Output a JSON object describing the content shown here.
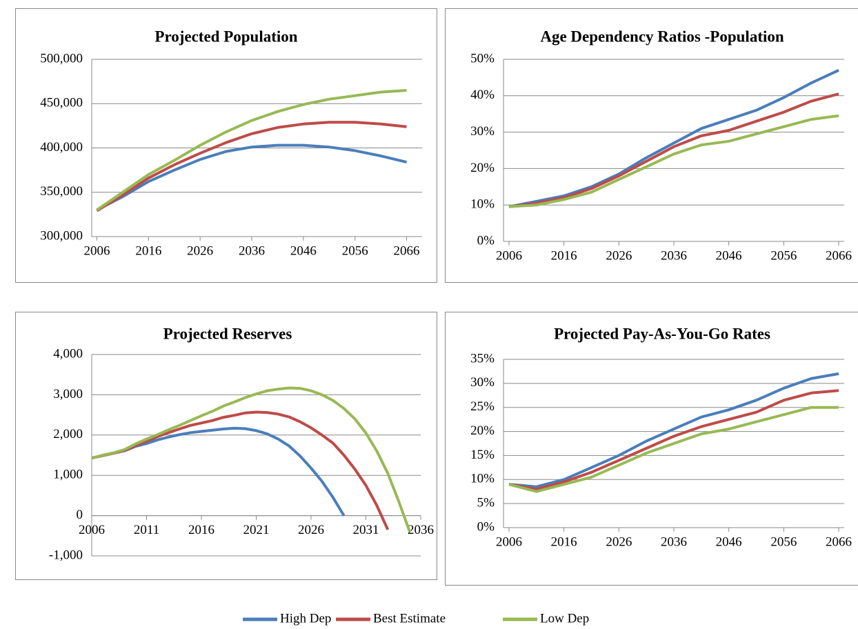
{
  "chart_data": [
    {
      "type": "line",
      "title": "Projected Population",
      "x": [
        2006,
        2011,
        2016,
        2021,
        2026,
        2031,
        2036,
        2041,
        2046,
        2051,
        2056,
        2061,
        2066
      ],
      "series": [
        {
          "name": "High Dep",
          "color": "#4a7ebb",
          "values": [
            330000,
            345000,
            362000,
            375000,
            387000,
            396000,
            401000,
            403000,
            403000,
            401000,
            397000,
            391000,
            384000
          ]
        },
        {
          "name": "Best Estimate",
          "color": "#be4b48",
          "values": [
            329000,
            347000,
            366000,
            381000,
            394000,
            406000,
            416000,
            423000,
            427000,
            429000,
            429000,
            427000,
            424000
          ]
        },
        {
          "name": "Low Dep",
          "color": "#98b954",
          "values": [
            330000,
            350000,
            370000,
            386000,
            403000,
            418000,
            431000,
            441000,
            449000,
            455000,
            459000,
            463000,
            465000
          ]
        }
      ],
      "xlim": [
        2005,
        2069
      ],
      "xticks": [
        2006,
        2016,
        2026,
        2036,
        2046,
        2056,
        2066
      ],
      "ylim": [
        300000,
        500000
      ],
      "yticks": [
        {
          "value": 300000,
          "label": "300,000"
        },
        {
          "value": 350000,
          "label": "350,000"
        },
        {
          "value": 400000,
          "label": "400,000"
        },
        {
          "value": 450000,
          "label": "450,000"
        },
        {
          "value": 500000,
          "label": "500,000"
        }
      ],
      "grid": true
    },
    {
      "type": "line",
      "title": "Age Dependency Ratios -Population",
      "x": [
        2006,
        2011,
        2016,
        2021,
        2026,
        2031,
        2036,
        2041,
        2046,
        2051,
        2056,
        2061,
        2066
      ],
      "series": [
        {
          "name": "High Dep",
          "color": "#4a7ebb",
          "values": [
            9.5,
            11,
            12.5,
            15,
            18.5,
            23,
            27,
            31,
            33.5,
            36,
            39.5,
            43.5,
            47
          ]
        },
        {
          "name": "Best Estimate",
          "color": "#be4b48",
          "values": [
            9.5,
            10.5,
            12,
            14.5,
            18,
            22,
            26,
            29,
            30.5,
            33,
            35.5,
            38.5,
            40.5
          ]
        },
        {
          "name": "Low Dep",
          "color": "#98b954",
          "values": [
            9.5,
            10,
            11.5,
            13.5,
            17,
            20.5,
            24,
            26.5,
            27.5,
            29.5,
            31.5,
            33.5,
            34.5
          ]
        }
      ],
      "xlim": [
        2005,
        2067
      ],
      "xticks": [
        2006,
        2016,
        2026,
        2036,
        2046,
        2056,
        2066
      ],
      "ylim": [
        0,
        50
      ],
      "yticks": [
        {
          "value": 0,
          "label": "0%"
        },
        {
          "value": 10,
          "label": "10%"
        },
        {
          "value": 20,
          "label": "20%"
        },
        {
          "value": 30,
          "label": "30%"
        },
        {
          "value": 40,
          "label": "40%"
        },
        {
          "value": 50,
          "label": "50%"
        }
      ],
      "grid": true
    },
    {
      "type": "line",
      "title": "Projected Reserves",
      "x": [
        2006,
        2007,
        2008,
        2009,
        2010,
        2011,
        2012,
        2013,
        2014,
        2015,
        2016,
        2017,
        2018,
        2019,
        2020,
        2021,
        2022,
        2023,
        2024,
        2025,
        2026,
        2027,
        2028,
        2029,
        2030,
        2031,
        2032,
        2033,
        2034,
        2035
      ],
      "series": [
        {
          "name": "High Dep",
          "color": "#4a7ebb",
          "values": [
            1430,
            1490,
            1550,
            1610,
            1720,
            1790,
            1880,
            1950,
            2010,
            2060,
            2090,
            2120,
            2150,
            2170,
            2160,
            2110,
            2030,
            1900,
            1730,
            1480,
            1180,
            850,
            450,
            0,
            null,
            null,
            null,
            null,
            null,
            null
          ]
        },
        {
          "name": "Best Estimate",
          "color": "#be4b48",
          "values": [
            1430,
            1490,
            1550,
            1620,
            1740,
            1850,
            1960,
            2060,
            2150,
            2240,
            2300,
            2360,
            2440,
            2490,
            2550,
            2570,
            2560,
            2520,
            2450,
            2330,
            2180,
            2000,
            1800,
            1500,
            1150,
            750,
            250,
            -350,
            null,
            null
          ]
        },
        {
          "name": "Low Dep",
          "color": "#98b954",
          "values": [
            1430,
            1500,
            1560,
            1640,
            1780,
            1900,
            2010,
            2130,
            2240,
            2360,
            2480,
            2590,
            2720,
            2820,
            2930,
            3020,
            3100,
            3140,
            3170,
            3160,
            3100,
            3000,
            2860,
            2660,
            2400,
            2050,
            1600,
            1050,
            350,
            -400
          ]
        }
      ],
      "xlim": [
        2006,
        2036
      ],
      "xticks": [
        2006,
        2011,
        2016,
        2021,
        2026,
        2031,
        2036
      ],
      "ylim": [
        -1000,
        4000
      ],
      "yticks": [
        {
          "value": -1000,
          "label": "-1,000"
        },
        0,
        {
          "value": 1000,
          "label": "1,000"
        },
        {
          "value": 2000,
          "label": "2,000"
        },
        {
          "value": 3000,
          "label": "3,000"
        },
        {
          "value": 4000,
          "label": "4,000"
        }
      ],
      "grid": true
    },
    {
      "type": "line",
      "title": "Projected Pay-As-You-Go Rates",
      "x": [
        2006,
        2011,
        2016,
        2021,
        2026,
        2031,
        2036,
        2041,
        2046,
        2051,
        2056,
        2061,
        2066
      ],
      "series": [
        {
          "name": "High Dep",
          "color": "#4a7ebb",
          "values": [
            9,
            8.5,
            10,
            12.5,
            15,
            18,
            20.5,
            23,
            24.5,
            26.5,
            29,
            31,
            32
          ]
        },
        {
          "name": "Best Estimate",
          "color": "#be4b48",
          "values": [
            9,
            8,
            9.5,
            11.5,
            14,
            16.5,
            19,
            21,
            22.5,
            24,
            26.5,
            28,
            28.5
          ]
        },
        {
          "name": "Low Dep",
          "color": "#98b954",
          "values": [
            9,
            7.5,
            9,
            10.5,
            13,
            15.5,
            17.5,
            19.5,
            20.5,
            22,
            23.5,
            25,
            25
          ]
        }
      ],
      "xlim": [
        2005,
        2067
      ],
      "xticks": [
        2006,
        2016,
        2026,
        2036,
        2046,
        2056,
        2066
      ],
      "ylim": [
        0,
        35
      ],
      "yticks": [
        {
          "value": 0,
          "label": "0%"
        },
        {
          "value": 5,
          "label": "5%"
        },
        {
          "value": 10,
          "label": "10%"
        },
        {
          "value": 15,
          "label": "15%"
        },
        {
          "value": 20,
          "label": "20%"
        },
        {
          "value": 25,
          "label": "25%"
        },
        {
          "value": 30,
          "label": "30%"
        },
        {
          "value": 35,
          "label": "35%"
        }
      ],
      "grid": true
    }
  ]
}
